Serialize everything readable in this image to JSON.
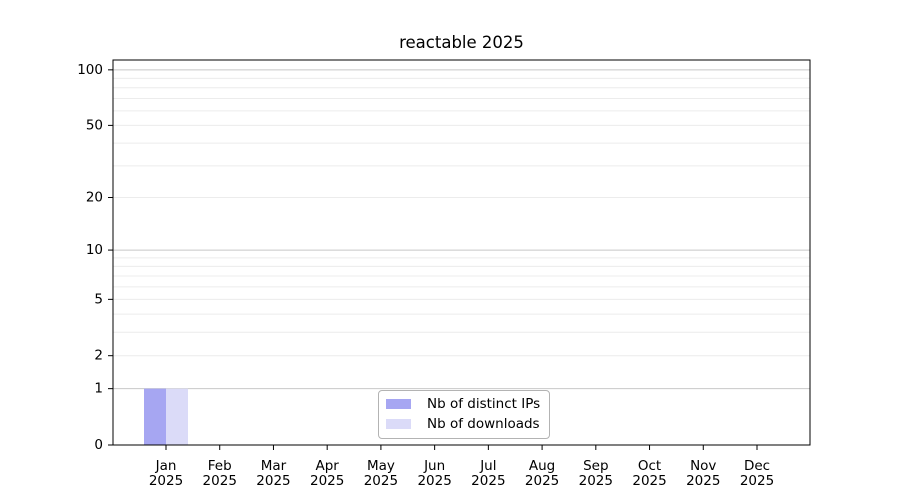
{
  "chart_data": {
    "type": "bar",
    "title": "reactable 2025",
    "x_axis": {
      "months": [
        "Jan",
        "Feb",
        "Mar",
        "Apr",
        "May",
        "Jun",
        "Jul",
        "Aug",
        "Sep",
        "Oct",
        "Nov",
        "Dec"
      ],
      "year": "2025"
    },
    "y_axis": {
      "scale": "log10(v+1)",
      "ticks": [
        0,
        1,
        2,
        5,
        10,
        20,
        50,
        100
      ],
      "ylim": [
        0,
        113
      ]
    },
    "series": [
      {
        "name": "Nb of distinct IPs",
        "color": "#a6a6f2",
        "values": [
          1,
          0,
          0,
          0,
          0,
          0,
          0,
          0,
          0,
          0,
          0,
          0
        ]
      },
      {
        "name": "Nb of downloads",
        "color": "#dbdbf8",
        "values": [
          1,
          0,
          0,
          0,
          0,
          0,
          0,
          0,
          0,
          0,
          0,
          0
        ]
      }
    ],
    "grid": {
      "major_values": [
        1,
        10,
        100
      ],
      "minor_values": [
        2,
        3,
        4,
        5,
        6,
        7,
        8,
        9,
        20,
        30,
        40,
        50,
        60,
        70,
        80,
        90
      ],
      "major_color": "#c8c8c8",
      "minor_color": "#ececec"
    },
    "legend": {
      "position": "bottom-center",
      "border_color": "#b3b3b3"
    },
    "axis_color": "#000000",
    "text_color": "#000000",
    "background": "#ffffff"
  }
}
